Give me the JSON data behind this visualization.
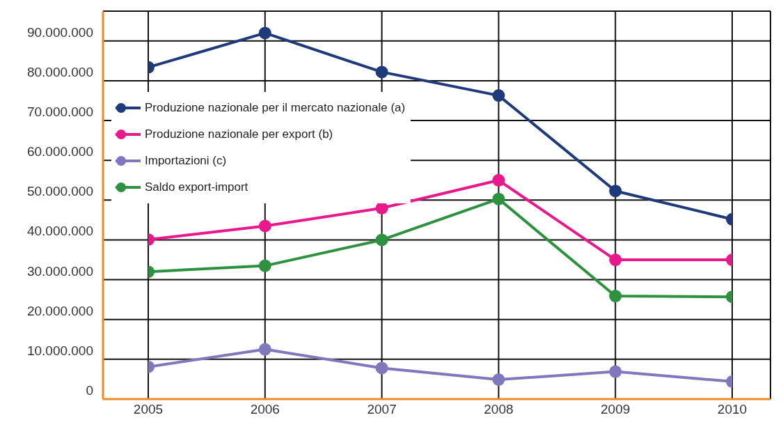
{
  "chart_data": {
    "type": "line",
    "categories": [
      "2005",
      "2006",
      "2007",
      "2008",
      "2009",
      "2010"
    ],
    "series": [
      {
        "name": "Produzione nazionale per il mercato nazionale (a)",
        "color": "#1f3a7a",
        "values": [
          83400000,
          92000000,
          82200000,
          76300000,
          52300000,
          45200000
        ]
      },
      {
        "name": "Produzione nazionale per export (b)",
        "color": "#e8198b",
        "values": [
          40100000,
          43500000,
          48000000,
          55000000,
          35000000,
          35000000
        ]
      },
      {
        "name": "Importazioni (c)",
        "color": "#8078bc",
        "values": [
          8100000,
          12500000,
          7800000,
          4900000,
          6900000,
          4400000
        ]
      },
      {
        "name": "Saldo export-import",
        "color": "#2e9140",
        "values": [
          32000000,
          33500000,
          40000000,
          50300000,
          25900000,
          25700000
        ]
      }
    ],
    "ylim": [
      0,
      97500000
    ],
    "yticks": [
      {
        "value": 0,
        "label": "0"
      },
      {
        "value": 10000000,
        "label": "10.000.000"
      },
      {
        "value": 20000000,
        "label": "20.000.000"
      },
      {
        "value": 30000000,
        "label": "30.000.000"
      },
      {
        "value": 40000000,
        "label": "40.000.000"
      },
      {
        "value": 50000000,
        "label": "50.000.000"
      },
      {
        "value": 60000000,
        "label": "60.000.000"
      },
      {
        "value": 70000000,
        "label": "70.000.000"
      },
      {
        "value": 80000000,
        "label": "80.000.000"
      },
      {
        "value": 90000000,
        "label": "90.000.000"
      }
    ],
    "grid": true,
    "legend": "top left",
    "marker": "circle",
    "line_style": "solid"
  }
}
